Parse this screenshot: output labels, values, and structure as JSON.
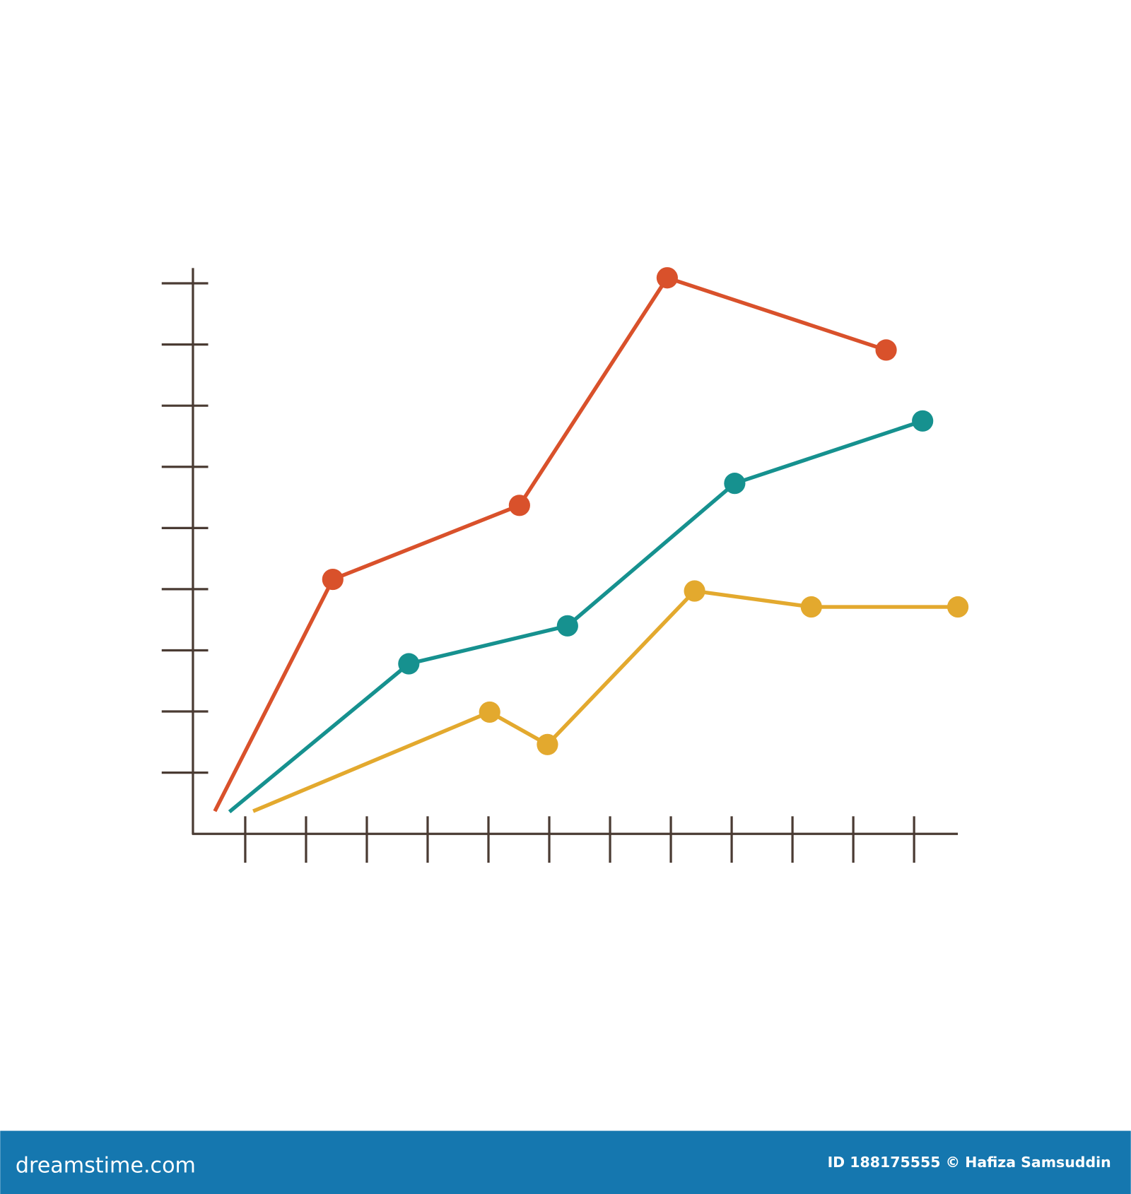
{
  "chart_data": {
    "type": "line",
    "xlim": [
      0.14,
      12.72
    ],
    "xticks": [
      1,
      2,
      3,
      4,
      5,
      6,
      7,
      8,
      9,
      10,
      11,
      12
    ],
    "ylim": [
      0,
      9.25
    ],
    "yticks": [
      1,
      2,
      3,
      4,
      5,
      6,
      7,
      8,
      9
    ],
    "axis_color": "#4a3b33",
    "series": [
      {
        "color": "#d9512b",
        "x": [
          0.5,
          2.44,
          5.51,
          7.94,
          11.54
        ],
        "values": [
          0.37,
          4.16,
          5.37,
          9.09,
          7.91
        ]
      },
      {
        "color": "#16918f",
        "x": [
          0.74,
          3.69,
          6.3,
          9.05,
          12.14
        ],
        "values": [
          0.36,
          2.78,
          3.4,
          5.73,
          6.75
        ]
      },
      {
        "color": "#e3a92e",
        "x": [
          1.13,
          5.02,
          5.97,
          8.39,
          10.31,
          12.72
        ],
        "values": [
          0.37,
          1.99,
          1.46,
          3.97,
          3.71,
          3.71
        ]
      }
    ]
  },
  "footer": {
    "site": "dreamstime.com",
    "credit": "ID 188175555 © Hafiza Samsuddin"
  }
}
